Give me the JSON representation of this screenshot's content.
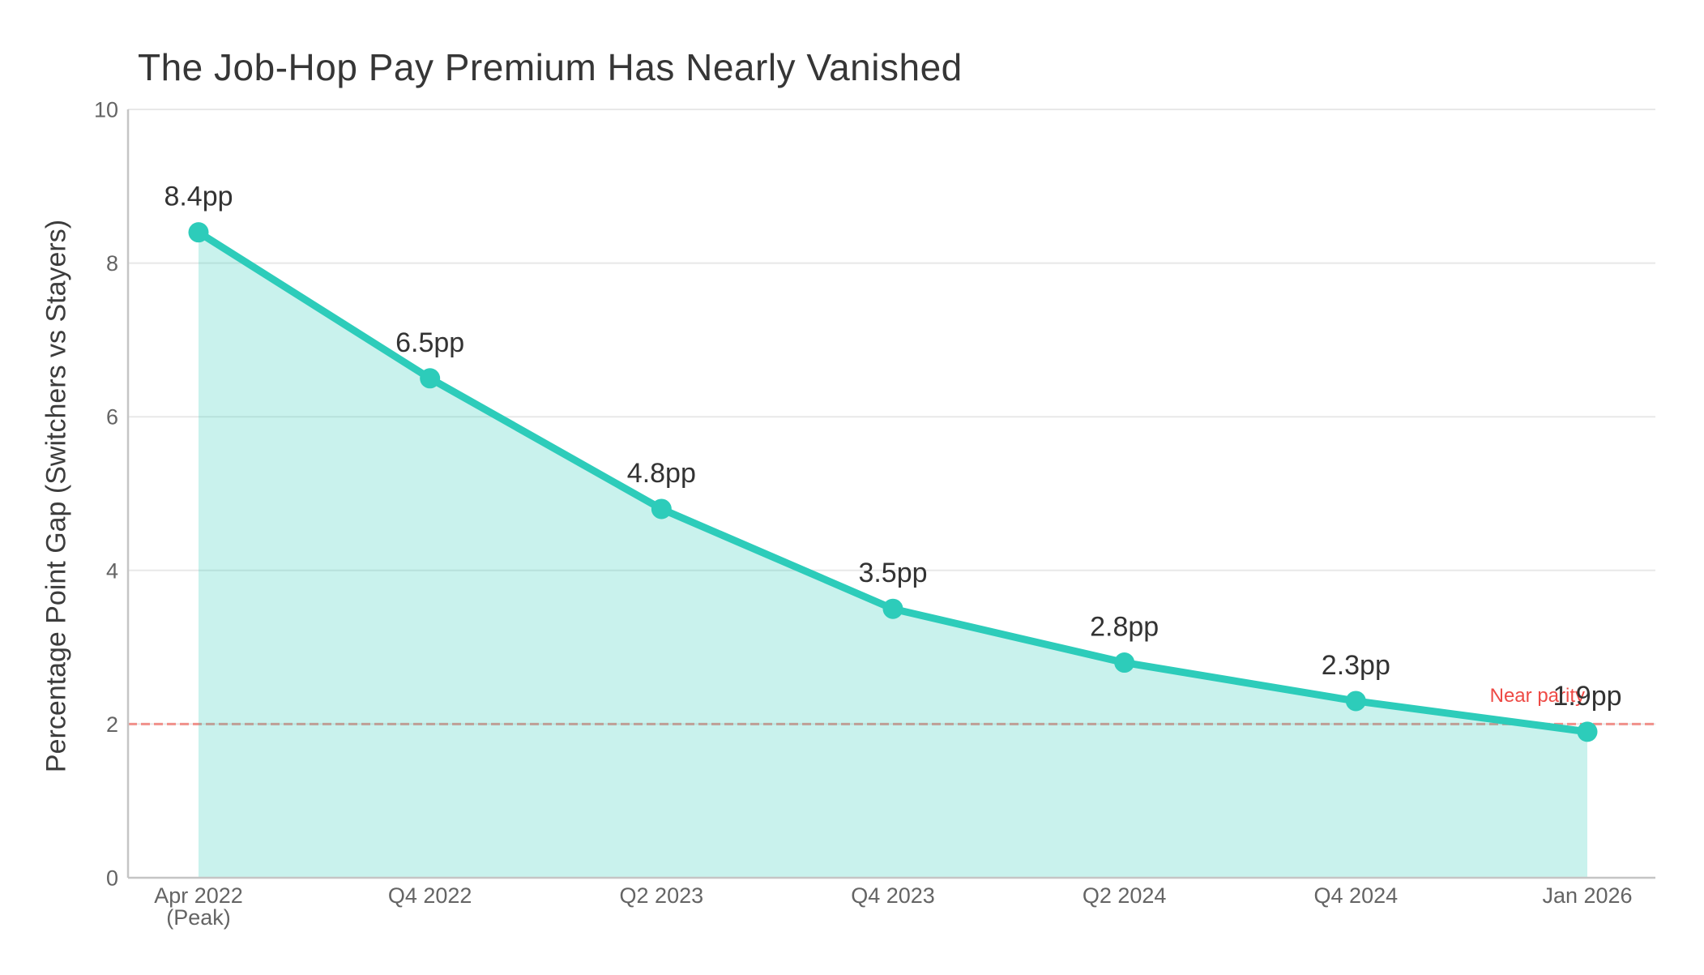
{
  "chart_data": {
    "type": "area",
    "title": "The Job-Hop Pay Premium Has Nearly Vanished",
    "ylabel": "Percentage Point Gap (Switchers vs Stayers)",
    "xlabel": "",
    "categories": [
      "Apr 2022\n(Peak)",
      "Q4 2022",
      "Q2 2023",
      "Q4 2023",
      "Q2 2024",
      "Q4 2024",
      "Jan 2026"
    ],
    "values": [
      8.4,
      6.5,
      4.8,
      3.5,
      2.8,
      2.3,
      1.9
    ],
    "point_labels": [
      "8.4pp",
      "6.5pp",
      "4.8pp",
      "3.5pp",
      "2.8pp",
      "2.3pp",
      "1.9pp"
    ],
    "ylim": [
      0,
      10
    ],
    "yticks": [
      0,
      2,
      4,
      6,
      8,
      10
    ],
    "grid": true,
    "legend": false,
    "line_color": "#2dccba",
    "fill_color": "rgba(45,204,186,0.26)",
    "reference_line": {
      "value": 2,
      "label": "Near parity",
      "label_color": "#ee4a45",
      "line_color": "#f0908a",
      "style": "dashed"
    },
    "palette": {
      "title_text": "#363636",
      "label_text": "#333333",
      "tick_text": "#646464",
      "axis": "#c5c5c5",
      "grid": "#e8e8e8",
      "background": "#ffffff"
    }
  }
}
